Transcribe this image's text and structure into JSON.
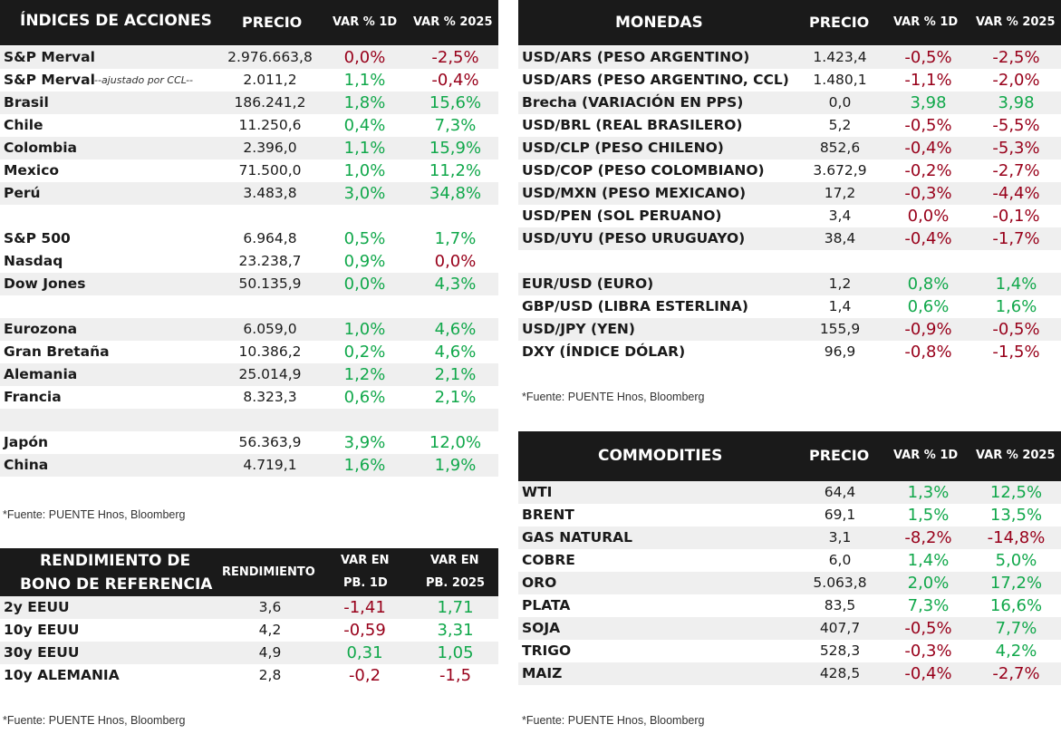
{
  "indices": {
    "header": {
      "name": "ÍNDICES DE ACCIONES",
      "price": "PRECIO",
      "var1d": "VAR % 1D",
      "var2025": "VAR % 2025"
    },
    "rows": [
      {
        "name": "S&P Merval",
        "note": "",
        "price": "2.976.663,8",
        "v1": "0,0%",
        "v2": "-2,5%",
        "c1": "neg",
        "c2": "neg",
        "shade": true
      },
      {
        "name": "S&P Merval",
        "note": "--ajustado por CCL--",
        "price": "2.011,2",
        "v1": "1,1%",
        "v2": "-0,4%",
        "c1": "pos",
        "c2": "neg",
        "shade": false
      },
      {
        "name": "Brasil",
        "note": "",
        "price": "186.241,2",
        "v1": "1,8%",
        "v2": "15,6%",
        "c1": "pos",
        "c2": "pos",
        "shade": true
      },
      {
        "name": "Chile",
        "note": "",
        "price": "11.250,6",
        "v1": "0,4%",
        "v2": "7,3%",
        "c1": "pos",
        "c2": "pos",
        "shade": false
      },
      {
        "name": "Colombia",
        "note": "",
        "price": "2.396,0",
        "v1": "1,1%",
        "v2": "15,9%",
        "c1": "pos",
        "c2": "pos",
        "shade": true
      },
      {
        "name": "Mexico",
        "note": "",
        "price": "71.500,0",
        "v1": "1,0%",
        "v2": "11,2%",
        "c1": "pos",
        "c2": "pos",
        "shade": false
      },
      {
        "name": "Perú",
        "note": "",
        "price": "3.483,8",
        "v1": "3,0%",
        "v2": "34,8%",
        "c1": "pos",
        "c2": "pos",
        "shade": true
      },
      {
        "name": "",
        "note": "",
        "price": "",
        "v1": "",
        "v2": "",
        "c1": "",
        "c2": "",
        "shade": false
      },
      {
        "name": "S&P 500",
        "note": "",
        "price": "6.964,8",
        "v1": "0,5%",
        "v2": "1,7%",
        "c1": "pos",
        "c2": "pos",
        "shade": false
      },
      {
        "name": "Nasdaq",
        "note": "",
        "price": "23.238,7",
        "v1": "0,9%",
        "v2": "0,0%",
        "c1": "pos",
        "c2": "neg",
        "shade": false
      },
      {
        "name": "Dow Jones",
        "note": "",
        "price": "50.135,9",
        "v1": "0,0%",
        "v2": "4,3%",
        "c1": "pos",
        "c2": "pos",
        "shade": true
      },
      {
        "name": "",
        "note": "",
        "price": "",
        "v1": "",
        "v2": "",
        "c1": "",
        "c2": "",
        "shade": false
      },
      {
        "name": "Eurozona",
        "note": "",
        "price": "6.059,0",
        "v1": "1,0%",
        "v2": "4,6%",
        "c1": "pos",
        "c2": "pos",
        "shade": true
      },
      {
        "name": "Gran Bretaña",
        "note": "",
        "price": "10.386,2",
        "v1": "0,2%",
        "v2": "4,6%",
        "c1": "pos",
        "c2": "pos",
        "shade": false
      },
      {
        "name": "Alemania",
        "note": "",
        "price": "25.014,9",
        "v1": "1,2%",
        "v2": "2,1%",
        "c1": "pos",
        "c2": "pos",
        "shade": true
      },
      {
        "name": "Francia",
        "note": "",
        "price": "8.323,3",
        "v1": "0,6%",
        "v2": "2,1%",
        "c1": "pos",
        "c2": "pos",
        "shade": false
      },
      {
        "name": "",
        "note": "",
        "price": "",
        "v1": "",
        "v2": "",
        "c1": "",
        "c2": "",
        "shade": true
      },
      {
        "name": "Japón",
        "note": "",
        "price": "56.363,9",
        "v1": "3,9%",
        "v2": "12,0%",
        "c1": "pos",
        "c2": "pos",
        "shade": false
      },
      {
        "name": "China",
        "note": "",
        "price": "4.719,1",
        "v1": "1,6%",
        "v2": "1,9%",
        "c1": "pos",
        "c2": "pos",
        "shade": true
      }
    ],
    "source": "*Fuente: PUENTE Hnos, Bloomberg"
  },
  "bonds": {
    "header": {
      "name1": "RENDIMIENTO DE",
      "name2": "BONO DE REFERENCIA",
      "yield": "RENDIMIENTO",
      "v1a": "VAR EN",
      "v1b": "PB. 1D",
      "v2a": "VAR EN",
      "v2b": "PB. 2025"
    },
    "rows": [
      {
        "name": "2y EEUU",
        "price": "3,6",
        "v1": "-1,41",
        "v2": "1,71",
        "c1": "neg",
        "c2": "pos",
        "shade": true
      },
      {
        "name": "10y EEUU",
        "price": "4,2",
        "v1": "-0,59",
        "v2": "3,31",
        "c1": "neg",
        "c2": "pos",
        "shade": false
      },
      {
        "name": "30y EEUU",
        "price": "4,9",
        "v1": "0,31",
        "v2": "1,05",
        "c1": "pos",
        "c2": "pos",
        "shade": true
      },
      {
        "name": "10y ALEMANIA",
        "price": "2,8",
        "v1": "-0,2",
        "v2": "-1,5",
        "c1": "neg",
        "c2": "neg",
        "shade": false
      }
    ],
    "source": "*Fuente: PUENTE Hnos, Bloomberg"
  },
  "currencies": {
    "header": {
      "name": "MONEDAS",
      "price": "PRECIO",
      "var1d": "VAR % 1D",
      "var2025": "VAR % 2025"
    },
    "rows": [
      {
        "name": "USD/ARS (PESO ARGENTINO)",
        "price": "1.423,4",
        "v1": "-0,5%",
        "v2": "-2,5%",
        "c1": "neg",
        "c2": "neg",
        "shade": true
      },
      {
        "name": "USD/ARS (PESO ARGENTINO, CCL)",
        "price": "1.480,1",
        "v1": "-1,1%",
        "v2": "-2,0%",
        "c1": "neg",
        "c2": "neg",
        "shade": false
      },
      {
        "name": "Brecha (VARIACIÓN EN PPS)",
        "price": "0,0",
        "v1": "3,98",
        "v2": "3,98",
        "c1": "pos",
        "c2": "pos",
        "shade": true
      },
      {
        "name": "USD/BRL (REAL BRASILERO)",
        "price": "5,2",
        "v1": "-0,5%",
        "v2": "-5,5%",
        "c1": "neg",
        "c2": "neg",
        "shade": false
      },
      {
        "name": "USD/CLP (PESO CHILENO)",
        "price": "852,6",
        "v1": "-0,4%",
        "v2": "-5,3%",
        "c1": "neg",
        "c2": "neg",
        "shade": true
      },
      {
        "name": "USD/COP (PESO COLOMBIANO)",
        "price": "3.672,9",
        "v1": "-0,2%",
        "v2": "-2,7%",
        "c1": "neg",
        "c2": "neg",
        "shade": false
      },
      {
        "name": "USD/MXN (PESO MEXICANO)",
        "price": "17,2",
        "v1": "-0,3%",
        "v2": "-4,4%",
        "c1": "neg",
        "c2": "neg",
        "shade": true
      },
      {
        "name": "USD/PEN (SOL PERUANO)",
        "price": "3,4",
        "v1": "0,0%",
        "v2": "-0,1%",
        "c1": "neg",
        "c2": "neg",
        "shade": false
      },
      {
        "name": "USD/UYU (PESO URUGUAYO)",
        "price": "38,4",
        "v1": "-0,4%",
        "v2": "-1,7%",
        "c1": "neg",
        "c2": "neg",
        "shade": true
      },
      {
        "name": "",
        "price": "",
        "v1": "",
        "v2": "",
        "c1": "",
        "c2": "",
        "shade": false
      },
      {
        "name": "EUR/USD (EURO)",
        "price": "1,2",
        "v1": "0,8%",
        "v2": "1,4%",
        "c1": "pos",
        "c2": "pos",
        "shade": true
      },
      {
        "name": "GBP/USD (LIBRA ESTERLINA)",
        "price": "1,4",
        "v1": "0,6%",
        "v2": "1,6%",
        "c1": "pos",
        "c2": "pos",
        "shade": false
      },
      {
        "name": "USD/JPY (YEN)",
        "price": "155,9",
        "v1": "-0,9%",
        "v2": "-0,5%",
        "c1": "neg",
        "c2": "neg",
        "shade": true
      },
      {
        "name": "DXY (ÍNDICE DÓLAR)",
        "price": "96,9",
        "v1": "-0,8%",
        "v2": "-1,5%",
        "c1": "neg",
        "c2": "neg",
        "shade": false
      }
    ],
    "source": "*Fuente: PUENTE Hnos, Bloomberg"
  },
  "commodities": {
    "header": {
      "name": "COMMODITIES",
      "price": "PRECIO",
      "var1d": "VAR % 1D",
      "var2025": "VAR % 2025"
    },
    "rows": [
      {
        "name": "WTI",
        "price": "64,4",
        "v1": "1,3%",
        "v2": "12,5%",
        "c1": "pos",
        "c2": "pos",
        "shade": true
      },
      {
        "name": "BRENT",
        "price": "69,1",
        "v1": "1,5%",
        "v2": "13,5%",
        "c1": "pos",
        "c2": "pos",
        "shade": false
      },
      {
        "name": "GAS NATURAL",
        "price": "3,1",
        "v1": "-8,2%",
        "v2": "-14,8%",
        "c1": "neg",
        "c2": "neg",
        "shade": true
      },
      {
        "name": "COBRE",
        "price": "6,0",
        "v1": "1,4%",
        "v2": "5,0%",
        "c1": "pos",
        "c2": "pos",
        "shade": false
      },
      {
        "name": "ORO",
        "price": "5.063,8",
        "v1": "2,0%",
        "v2": "17,2%",
        "c1": "pos",
        "c2": "pos",
        "shade": true
      },
      {
        "name": "PLATA",
        "price": "83,5",
        "v1": "7,3%",
        "v2": "16,6%",
        "c1": "pos",
        "c2": "pos",
        "shade": false
      },
      {
        "name": "SOJA",
        "price": "407,7",
        "v1": "-0,5%",
        "v2": "7,7%",
        "c1": "neg",
        "c2": "pos",
        "shade": true
      },
      {
        "name": "TRIGO",
        "price": "528,3",
        "v1": "-0,3%",
        "v2": "4,2%",
        "c1": "neg",
        "c2": "pos",
        "shade": false
      },
      {
        "name": "MAIZ",
        "price": "428,5",
        "v1": "-0,4%",
        "v2": "-2,7%",
        "c1": "neg",
        "c2": "neg",
        "shade": true
      }
    ],
    "source": "*Fuente: PUENTE Hnos, Bloomberg"
  },
  "colors": {
    "positive": "#11a84b",
    "negative": "#98001a",
    "header_bg": "#1a1a1a",
    "row_shade": "#efefef"
  }
}
